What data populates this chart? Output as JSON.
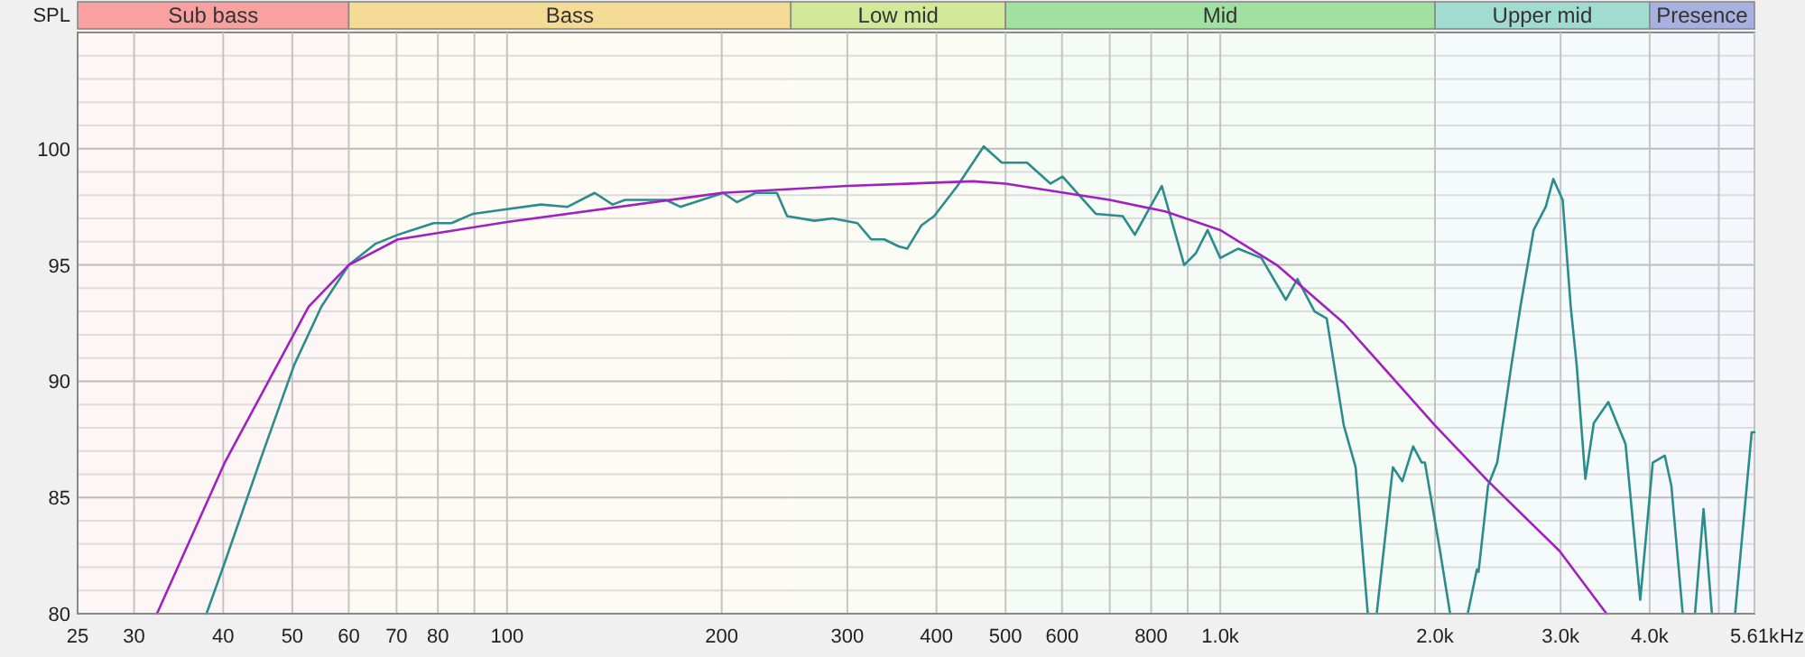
{
  "chart_data": {
    "type": "line",
    "ylabel": "SPL",
    "xlabel": "Hz",
    "log": "x",
    "grid": true,
    "line_style": "solid",
    "xlim": [
      25,
      5610
    ],
    "ylim": [
      80,
      105
    ],
    "xticks": [
      25,
      30,
      40,
      50,
      60,
      70,
      80,
      {
        "value": 90,
        "label": null
      },
      100,
      200,
      300,
      400,
      500,
      600,
      {
        "value": 700,
        "label": null
      },
      800,
      {
        "value": 900,
        "label": null
      },
      {
        "value": 1000,
        "label": "1.0k"
      },
      {
        "value": 2000,
        "label": "2.0k"
      },
      {
        "value": 3000,
        "label": "3.0k"
      },
      {
        "value": 4000,
        "label": "4.0k"
      },
      {
        "value": 5000,
        "label": null
      },
      {
        "value": 5610,
        "label": "5.61k"
      }
    ],
    "yticks": [
      80,
      {
        "value": 81,
        "label": null
      },
      {
        "value": 82,
        "label": null
      },
      {
        "value": 83,
        "label": null
      },
      {
        "value": 84,
        "label": null
      },
      85,
      {
        "value": 86,
        "label": null
      },
      {
        "value": 87,
        "label": null
      },
      {
        "value": 88,
        "label": null
      },
      {
        "value": 89,
        "label": null
      },
      90,
      {
        "value": 91,
        "label": null
      },
      {
        "value": 92,
        "label": null
      },
      {
        "value": 93,
        "label": null
      },
      {
        "value": 94,
        "label": null
      },
      95,
      {
        "value": 96,
        "label": null
      },
      {
        "value": 97,
        "label": null
      },
      {
        "value": 98,
        "label": null
      },
      {
        "value": 99,
        "label": null
      },
      100,
      {
        "value": 101,
        "label": null
      },
      {
        "value": 102,
        "label": null
      },
      {
        "value": 103,
        "label": null
      },
      {
        "value": 104,
        "label": null
      }
    ],
    "bands": [
      {
        "axis": "x",
        "from": 25,
        "to": 60,
        "label": "Sub bass",
        "color": "#f9a0a0"
      },
      {
        "axis": "x",
        "from": 60,
        "to": 250,
        "label": "Bass",
        "color": "#f5dc96"
      },
      {
        "axis": "x",
        "from": 250,
        "to": 500,
        "label": "Low mid",
        "color": "#d4e89a"
      },
      {
        "axis": "x",
        "from": 500,
        "to": 2000,
        "label": "Mid",
        "color": "#a0e0a0"
      },
      {
        "axis": "x",
        "from": 2000,
        "to": 4000,
        "label": "Upper mid",
        "color": "#a0dcd0"
      },
      {
        "axis": "x",
        "from": 4000,
        "to": 5610,
        "label": "Presence",
        "color": "#a8b0e0"
      }
    ],
    "series": [
      {
        "color": "#2a8c8c",
        "x": [
          37.9,
          40.2,
          45.2,
          50.3,
          54.9,
          60,
          65.3,
          70.3,
          78.9,
          83.6,
          89.6,
          100,
          111.6,
          121.6,
          132.7,
          140.6,
          146.4,
          167,
          175,
          201,
          210,
          223,
          239,
          247,
          270,
          286,
          310,
          324,
          338,
          354,
          364,
          381,
          397,
          428,
          466,
          494,
          536,
          578,
          601,
          669,
          730,
          759,
          828,
          890,
          924,
          960,
          1000,
          1059,
          1142,
          1236,
          1283,
          1356,
          1410,
          1490,
          1548,
          1610,
          1630,
          1657,
          1746,
          1800,
          1864,
          1916,
          1936,
          2033,
          2100,
          2160,
          2223,
          2290,
          2302,
          2374,
          2445,
          2560,
          2635,
          2750,
          2860,
          2930,
          3020,
          3100,
          3160,
          3250,
          3340,
          3500,
          3700,
          3880,
          4040,
          4200,
          4290,
          4450,
          4540,
          4630,
          4760,
          4890,
          5080,
          5270,
          5560,
          5610
        ],
        "values": [
          80,
          82.2,
          86.7,
          90.7,
          93.2,
          95,
          95.9,
          96.3,
          96.8,
          96.8,
          97.2,
          97.4,
          97.6,
          97.5,
          98.1,
          97.6,
          97.8,
          97.8,
          97.5,
          98.1,
          97.7,
          98.1,
          98.1,
          97.1,
          96.9,
          97,
          96.8,
          96.1,
          96.1,
          95.8,
          95.7,
          96.7,
          97.1,
          98.4,
          100.1,
          99.4,
          99.4,
          98.5,
          98.8,
          97.2,
          97.1,
          96.3,
          98.4,
          95,
          95.5,
          96.5,
          95.3,
          95.7,
          95.3,
          93.5,
          94.4,
          93,
          92.7,
          88.1,
          86.3,
          80,
          null,
          80,
          86.3,
          85.7,
          87.2,
          86.5,
          86.5,
          82.7,
          80,
          null,
          80,
          81.9,
          81.8,
          85.5,
          86.5,
          90.7,
          93.2,
          96.5,
          97.5,
          98.7,
          97.8,
          93.2,
          90.7,
          85.8,
          88.2,
          89.1,
          87.3,
          80.6,
          86.5,
          86.8,
          85.5,
          80,
          null,
          80,
          84.5,
          80,
          null,
          80,
          87.8,
          87.8
        ]
      },
      {
        "color": "#a020c0",
        "x": [
          32.3,
          40.2,
          52.7,
          60,
          70.3,
          100,
          200,
          300,
          450,
          500,
          700,
          837,
          1000,
          1200,
          1490,
          2000,
          2374,
          2990,
          3480
        ],
        "values": [
          80,
          86.5,
          93.2,
          95,
          96.1,
          96.85,
          98.1,
          98.4,
          98.6,
          98.5,
          97.8,
          97.3,
          96.5,
          95,
          92.5,
          88.1,
          85.7,
          82.7,
          80
        ]
      }
    ]
  }
}
